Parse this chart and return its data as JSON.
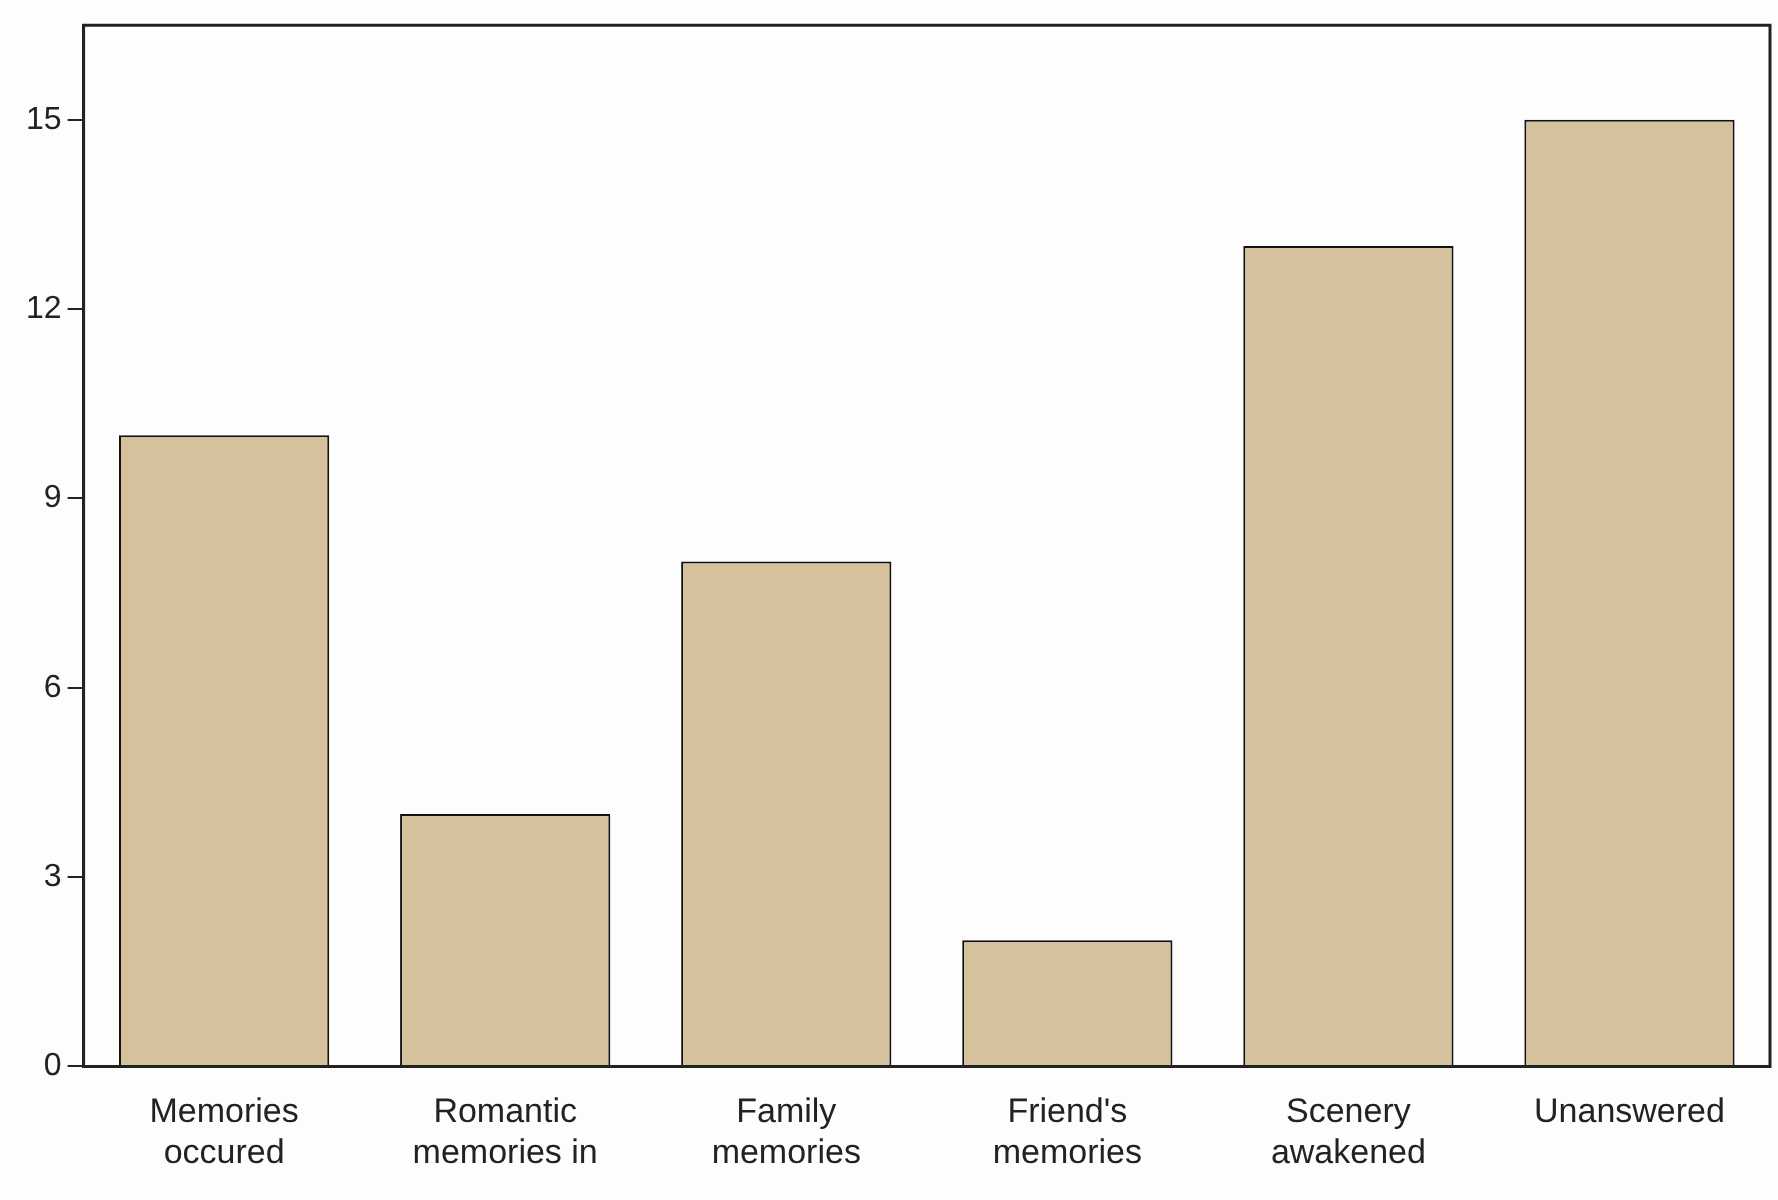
{
  "chart_data": {
    "type": "bar",
    "categories": [
      "Memories\noccured",
      "Romantic\nmemories in",
      "Family\nmemories",
      "Friend's\nmemories",
      "Scenery\nawakened",
      "Unanswered"
    ],
    "values": [
      10,
      4,
      8,
      2,
      13,
      15
    ],
    "color": "#d5c19c",
    "ylim": [
      0,
      16.5
    ],
    "yticks": [
      0,
      3,
      6,
      9,
      12,
      15
    ],
    "grid": false,
    "legend": false
  }
}
